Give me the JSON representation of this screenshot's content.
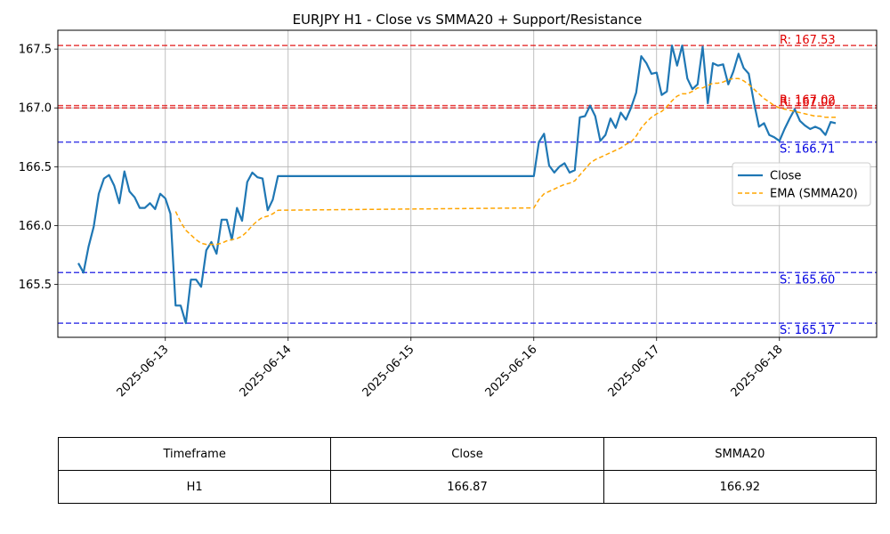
{
  "chart_data": {
    "type": "line",
    "title": "EURJPY H1 - Close vs SMMA20 + Support/Resistance",
    "xlabel": "",
    "ylabel": "",
    "x_ticks": [
      "2025-06-13",
      "2025-06-14",
      "2025-06-15",
      "2025-06-16",
      "2025-06-17",
      "2025-06-18"
    ],
    "y_ticks": [
      "165.5",
      "166.0",
      "166.5",
      "167.0",
      "167.5"
    ],
    "ylim": [
      165.05,
      167.66
    ],
    "xlim": [
      "2025-06-12T03:00",
      "2025-06-18T19:00"
    ],
    "grid": true,
    "legend_position": "center-right",
    "series": [
      {
        "name": "Close",
        "color": "#1f77b4",
        "style": "solid",
        "x": [
          "2025-06-12T07:00",
          "2025-06-12T08:00",
          "2025-06-12T09:00",
          "2025-06-12T10:00",
          "2025-06-12T11:00",
          "2025-06-12T12:00",
          "2025-06-12T13:00",
          "2025-06-12T14:00",
          "2025-06-12T15:00",
          "2025-06-12T16:00",
          "2025-06-12T17:00",
          "2025-06-12T18:00",
          "2025-06-12T19:00",
          "2025-06-12T20:00",
          "2025-06-12T21:00",
          "2025-06-12T22:00",
          "2025-06-12T23:00",
          "2025-06-13T00:00",
          "2025-06-13T01:00",
          "2025-06-13T02:00",
          "2025-06-13T03:00",
          "2025-06-13T04:00",
          "2025-06-13T05:00",
          "2025-06-13T06:00",
          "2025-06-13T07:00",
          "2025-06-13T08:00",
          "2025-06-13T09:00",
          "2025-06-13T10:00",
          "2025-06-13T11:00",
          "2025-06-13T12:00",
          "2025-06-13T13:00",
          "2025-06-13T14:00",
          "2025-06-13T15:00",
          "2025-06-13T16:00",
          "2025-06-13T17:00",
          "2025-06-13T18:00",
          "2025-06-13T19:00",
          "2025-06-13T20:00",
          "2025-06-13T21:00",
          "2025-06-13T22:00",
          "2025-06-16T00:00",
          "2025-06-16T01:00",
          "2025-06-16T02:00",
          "2025-06-16T03:00",
          "2025-06-16T04:00",
          "2025-06-16T05:00",
          "2025-06-16T06:00",
          "2025-06-16T07:00",
          "2025-06-16T08:00",
          "2025-06-16T09:00",
          "2025-06-16T10:00",
          "2025-06-16T11:00",
          "2025-06-16T12:00",
          "2025-06-16T13:00",
          "2025-06-16T14:00",
          "2025-06-16T15:00",
          "2025-06-16T16:00",
          "2025-06-16T17:00",
          "2025-06-16T18:00",
          "2025-06-16T19:00",
          "2025-06-16T20:00",
          "2025-06-16T21:00",
          "2025-06-16T22:00",
          "2025-06-16T23:00",
          "2025-06-17T00:00",
          "2025-06-17T01:00",
          "2025-06-17T02:00",
          "2025-06-17T03:00",
          "2025-06-17T04:00",
          "2025-06-17T05:00",
          "2025-06-17T06:00",
          "2025-06-17T07:00",
          "2025-06-17T08:00",
          "2025-06-17T09:00",
          "2025-06-17T10:00",
          "2025-06-17T11:00",
          "2025-06-17T12:00",
          "2025-06-17T13:00",
          "2025-06-17T14:00",
          "2025-06-17T15:00",
          "2025-06-17T16:00",
          "2025-06-17T17:00",
          "2025-06-17T18:00",
          "2025-06-17T19:00",
          "2025-06-17T20:00",
          "2025-06-17T21:00",
          "2025-06-17T22:00",
          "2025-06-17T23:00",
          "2025-06-18T00:00",
          "2025-06-18T01:00",
          "2025-06-18T02:00",
          "2025-06-18T03:00",
          "2025-06-18T04:00",
          "2025-06-18T05:00",
          "2025-06-18T06:00",
          "2025-06-18T07:00",
          "2025-06-18T08:00",
          "2025-06-18T09:00",
          "2025-06-18T10:00",
          "2025-06-18T11:00"
        ],
        "y": [
          165.68,
          165.6,
          165.82,
          165.99,
          166.27,
          166.4,
          166.43,
          166.34,
          166.19,
          166.46,
          166.29,
          166.24,
          166.15,
          166.15,
          166.19,
          166.14,
          166.27,
          166.23,
          166.1,
          165.32,
          165.32,
          165.17,
          165.54,
          165.54,
          165.48,
          165.79,
          165.86,
          165.76,
          166.05,
          166.05,
          165.88,
          166.15,
          166.04,
          166.37,
          166.45,
          166.41,
          166.4,
          166.13,
          166.22,
          166.42,
          166.42,
          166.71,
          166.78,
          166.51,
          166.45,
          166.5,
          166.53,
          166.45,
          166.47,
          166.92,
          166.93,
          167.02,
          166.93,
          166.72,
          166.77,
          166.91,
          166.83,
          166.96,
          166.9,
          167.0,
          167.13,
          167.44,
          167.38,
          167.29,
          167.3,
          167.11,
          167.14,
          167.53,
          167.36,
          167.53,
          167.25,
          167.16,
          167.2,
          167.52,
          167.04,
          167.38,
          167.36,
          167.37,
          167.2,
          167.31,
          167.46,
          167.34,
          167.29,
          167.05,
          166.84,
          166.87,
          166.77,
          166.75,
          166.72,
          166.82,
          166.91,
          166.99,
          166.89,
          166.85,
          166.82,
          166.84,
          166.82,
          166.77,
          166.88,
          166.87
        ]
      },
      {
        "name": "EMA (SMMA20)",
        "color": "#ffa500",
        "style": "dashed",
        "x": [
          "2025-06-13T02:00",
          "2025-06-13T03:00",
          "2025-06-13T04:00",
          "2025-06-13T05:00",
          "2025-06-13T06:00",
          "2025-06-13T07:00",
          "2025-06-13T08:00",
          "2025-06-13T09:00",
          "2025-06-13T10:00",
          "2025-06-13T11:00",
          "2025-06-13T12:00",
          "2025-06-13T13:00",
          "2025-06-13T14:00",
          "2025-06-13T15:00",
          "2025-06-13T16:00",
          "2025-06-13T17:00",
          "2025-06-13T18:00",
          "2025-06-13T19:00",
          "2025-06-13T20:00",
          "2025-06-13T21:00",
          "2025-06-13T22:00",
          "2025-06-16T00:00",
          "2025-06-16T01:00",
          "2025-06-16T02:00",
          "2025-06-16T03:00",
          "2025-06-16T04:00",
          "2025-06-16T05:00",
          "2025-06-16T06:00",
          "2025-06-16T07:00",
          "2025-06-16T08:00",
          "2025-06-16T09:00",
          "2025-06-16T10:00",
          "2025-06-16T11:00",
          "2025-06-16T12:00",
          "2025-06-16T13:00",
          "2025-06-16T14:00",
          "2025-06-16T15:00",
          "2025-06-16T16:00",
          "2025-06-16T17:00",
          "2025-06-16T18:00",
          "2025-06-16T19:00",
          "2025-06-16T20:00",
          "2025-06-16T21:00",
          "2025-06-16T22:00",
          "2025-06-16T23:00",
          "2025-06-17T00:00",
          "2025-06-17T01:00",
          "2025-06-17T02:00",
          "2025-06-17T03:00",
          "2025-06-17T04:00",
          "2025-06-17T05:00",
          "2025-06-17T06:00",
          "2025-06-17T07:00",
          "2025-06-17T08:00",
          "2025-06-17T09:00",
          "2025-06-17T10:00",
          "2025-06-17T11:00",
          "2025-06-17T12:00",
          "2025-06-17T13:00",
          "2025-06-17T14:00",
          "2025-06-17T15:00",
          "2025-06-17T16:00",
          "2025-06-17T17:00",
          "2025-06-17T18:00",
          "2025-06-17T19:00",
          "2025-06-17T20:00",
          "2025-06-17T21:00",
          "2025-06-17T22:00",
          "2025-06-17T23:00",
          "2025-06-18T00:00",
          "2025-06-18T01:00",
          "2025-06-18T02:00",
          "2025-06-18T03:00",
          "2025-06-18T04:00",
          "2025-06-18T05:00",
          "2025-06-18T06:00",
          "2025-06-18T07:00",
          "2025-06-18T08:00",
          "2025-06-18T09:00",
          "2025-06-18T10:00",
          "2025-06-18T11:00"
        ],
        "y": [
          166.12,
          166.03,
          165.96,
          165.92,
          165.88,
          165.85,
          165.84,
          165.84,
          165.84,
          165.85,
          165.87,
          165.88,
          165.89,
          165.91,
          165.95,
          166.0,
          166.04,
          166.07,
          166.08,
          166.1,
          166.13,
          166.15,
          166.22,
          166.27,
          166.29,
          166.31,
          166.33,
          166.35,
          166.36,
          166.38,
          166.43,
          166.48,
          166.53,
          166.56,
          166.58,
          166.6,
          166.62,
          166.64,
          166.66,
          166.69,
          166.71,
          166.76,
          166.83,
          166.88,
          166.92,
          166.95,
          166.97,
          167.01,
          167.06,
          167.1,
          167.12,
          167.12,
          167.14,
          167.17,
          167.17,
          167.19,
          167.21,
          167.21,
          167.22,
          167.24,
          167.25,
          167.25,
          167.23,
          167.2,
          167.16,
          167.12,
          167.08,
          167.05,
          167.02,
          167.0,
          166.99,
          166.98,
          166.97,
          166.96,
          166.95,
          166.94,
          166.93,
          166.93,
          166.92,
          166.92,
          166.92
        ]
      }
    ],
    "support_resistance": [
      {
        "kind": "resistance",
        "value": 167.53,
        "label": "R: 167.53",
        "color": "#e00000"
      },
      {
        "kind": "resistance",
        "value": 167.02,
        "label": "R: 167.02",
        "color": "#e00000"
      },
      {
        "kind": "resistance",
        "value": 167.0,
        "label": "R: 167.00",
        "color": "#e00000"
      },
      {
        "kind": "support",
        "value": 166.71,
        "label": "S: 166.71",
        "color": "#0000e0"
      },
      {
        "kind": "support",
        "value": 165.6,
        "label": "S: 165.60",
        "color": "#0000e0"
      },
      {
        "kind": "support",
        "value": 165.17,
        "label": "S: 165.17",
        "color": "#0000e0"
      }
    ]
  },
  "table": {
    "headers": [
      "Timeframe",
      "Close",
      "SMMA20"
    ],
    "row": [
      "H1",
      "166.87",
      "166.92"
    ]
  }
}
